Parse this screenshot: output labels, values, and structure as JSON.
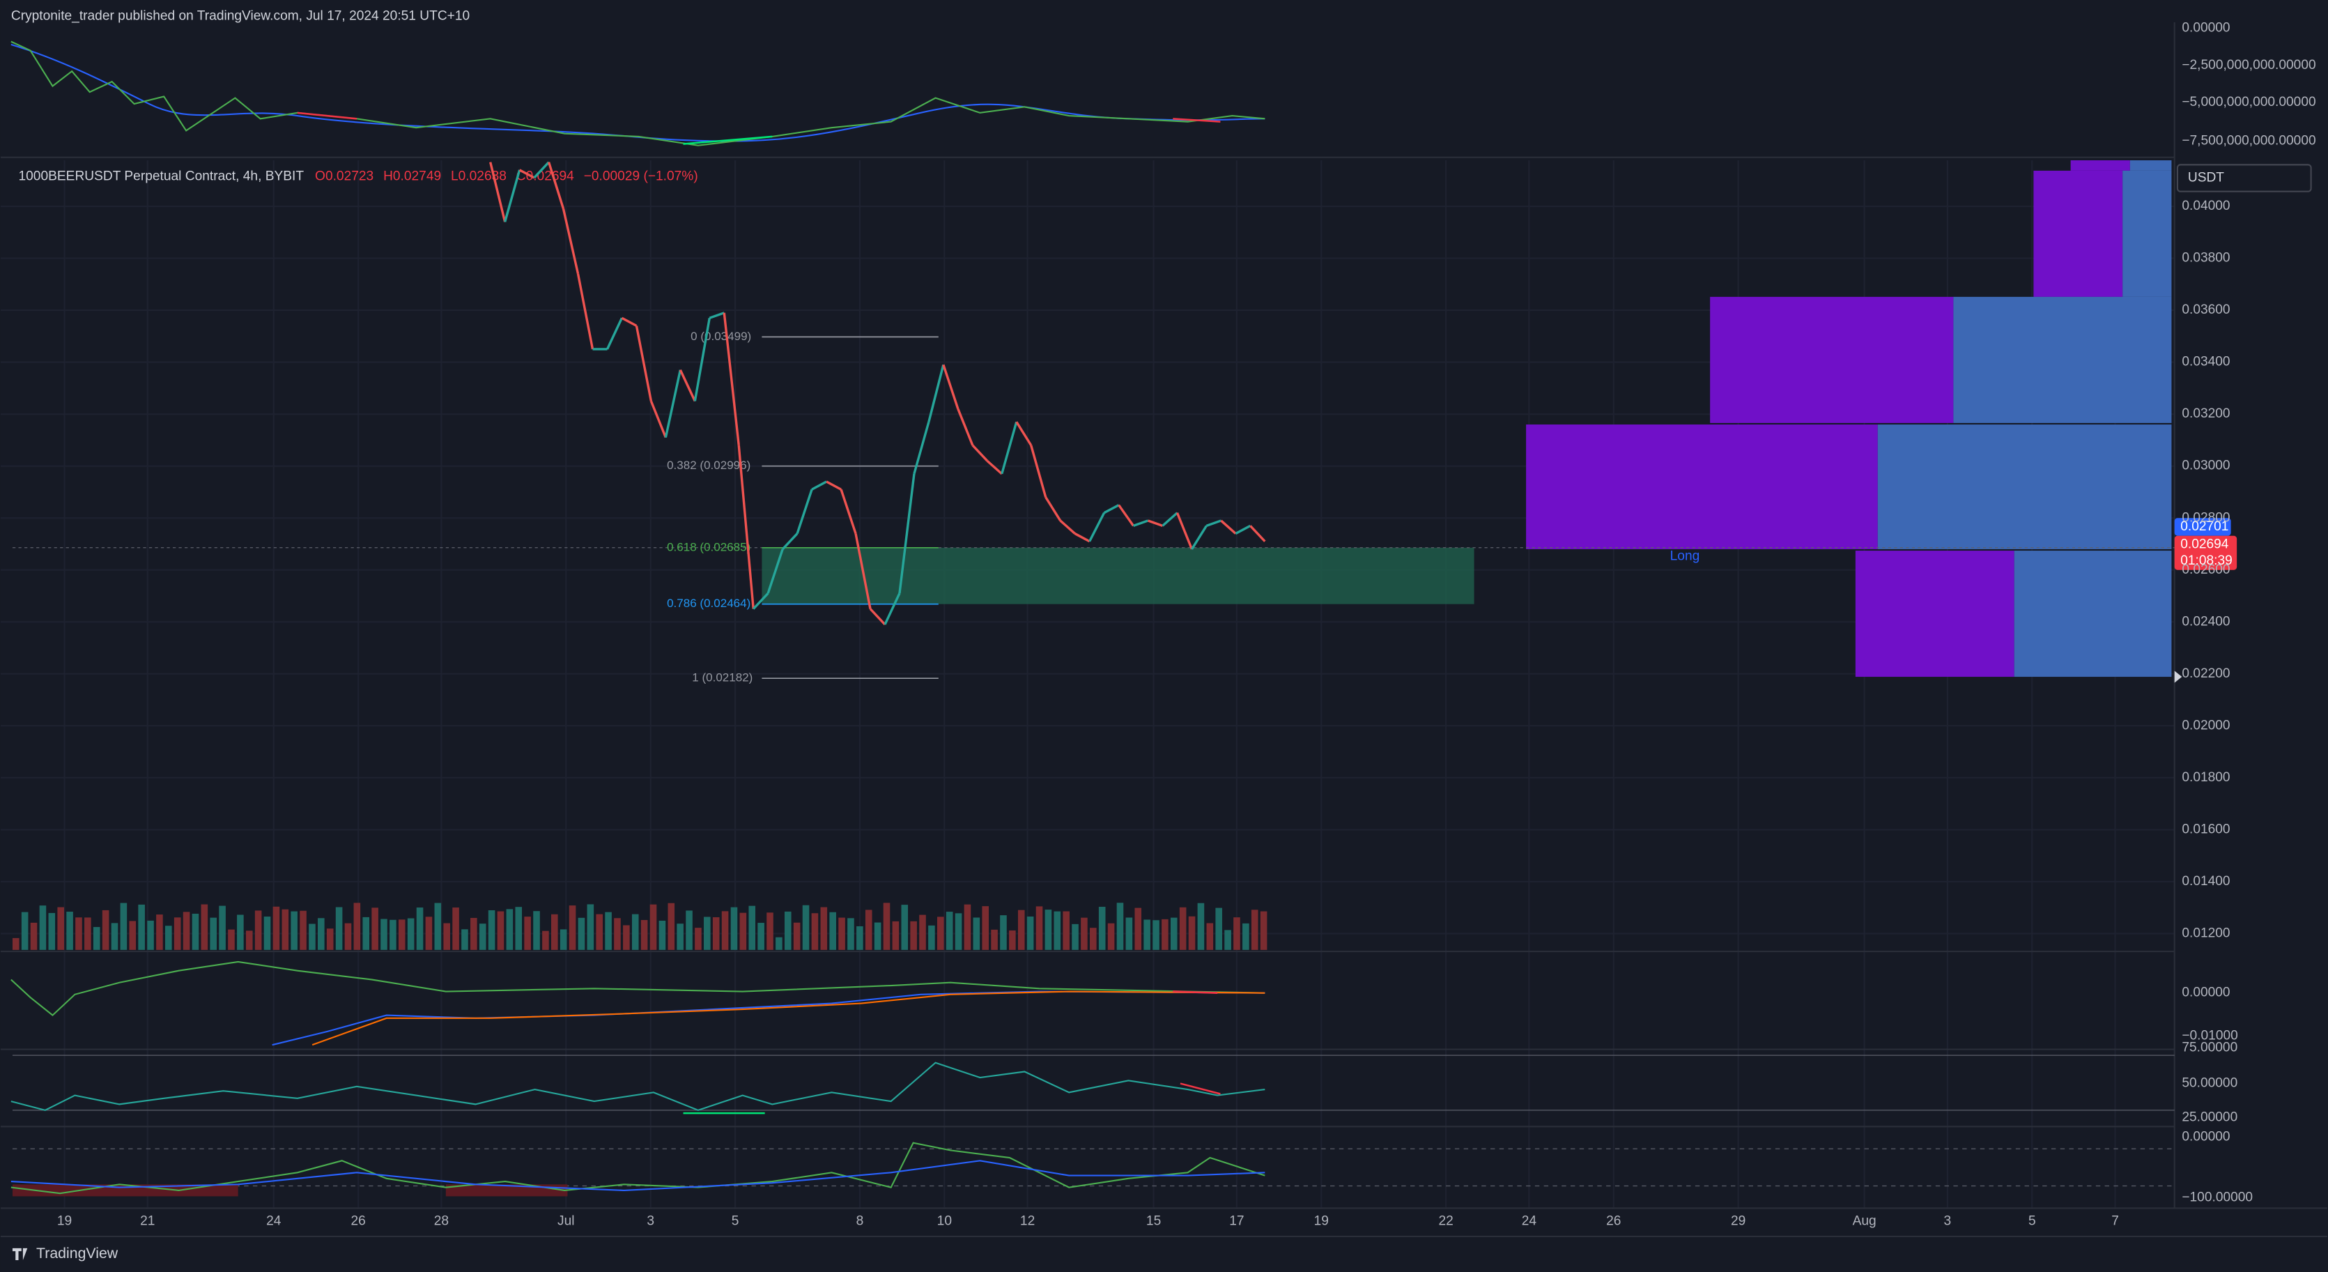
{
  "header": {
    "publisher_line": "Cryptonite_trader published on TradingView.com, Jul 17, 2024 20:51 UTC+10"
  },
  "symbol_line": {
    "symbol": "1000BEERUSDT Perpetual Contract, 4h, BYBIT",
    "open": "O0.02723",
    "high": "H0.02749",
    "low": "L0.02638",
    "close": "C0.02694",
    "change": "−0.00029 (−1.07%)"
  },
  "top_axis": {
    "ticks": [
      "0.00000",
      "−2,500,000,000.00000",
      "−5,000,000,000.00000",
      "−7,500,000,000.00000"
    ]
  },
  "price_axis": {
    "currency": "USDT",
    "ticks": [
      "0.04000",
      "0.03800",
      "0.03600",
      "0.03400",
      "0.03200",
      "0.03000",
      "0.02800",
      "0.02600",
      "0.02400",
      "0.02200",
      "0.02000",
      "0.01800",
      "0.01600",
      "0.01400",
      "0.01200"
    ],
    "last_price": "0.02701",
    "current_price": "0.02694",
    "countdown": "01:08:39"
  },
  "macd_axis": {
    "ticks": [
      "0.00000",
      "−0.01000"
    ]
  },
  "rsi_axis": {
    "ticks": [
      "75.00000",
      "50.00000",
      "25.00000"
    ]
  },
  "osc_axis": {
    "ticks": [
      "0.00000",
      "−100.00000"
    ]
  },
  "time_axis": {
    "labels": [
      "19",
      "21",
      "24",
      "26",
      "28",
      "Jul",
      "3",
      "5",
      "8",
      "10",
      "12",
      "15",
      "17",
      "19",
      "22",
      "24",
      "26",
      "29",
      "Aug",
      "3",
      "5",
      "7"
    ]
  },
  "fib_levels": [
    {
      "label": "0 (0.03499)"
    },
    {
      "label": "0.382 (0.02996)"
    },
    {
      "label": "0.618 (0.02685)"
    },
    {
      "label": "0.786 (0.02464)"
    },
    {
      "label": "1 (0.02182)"
    }
  ],
  "zone_label": "Long",
  "price_series": {
    "closes": [
      0.0417,
      0.0394,
      0.0414,
      0.0411,
      0.0417,
      0.0399,
      0.0374,
      0.0345,
      0.0345,
      0.0357,
      0.0354,
      0.0325,
      0.0311,
      0.0337,
      0.0325,
      0.0357,
      0.0359,
      0.0308,
      0.0245,
      0.0251,
      0.0268,
      0.0274,
      0.0291,
      0.0294,
      0.0291,
      0.0274,
      0.0245,
      0.0239,
      0.0251,
      0.0297,
      0.0317,
      0.0339,
      0.0322,
      0.0308,
      0.0302,
      0.0297,
      0.0317,
      0.0308,
      0.0288,
      0.0279,
      0.0274,
      0.0271,
      0.0282,
      0.0285,
      0.0277,
      0.0279,
      0.0277,
      0.0282,
      0.0268,
      0.0277,
      0.0279,
      0.0274,
      0.0277,
      0.0271
    ]
  },
  "footer": {
    "brand": "TradingView"
  }
}
